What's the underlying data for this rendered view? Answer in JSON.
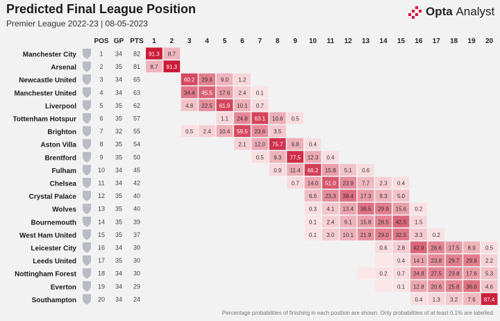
{
  "header": {
    "title": "Predicted Final League Position",
    "subtitle": "Premier League 2022-23 | 08-05-2023",
    "brand_main": "Opta",
    "brand_sub": "Analyst"
  },
  "footnote": "Percentage probabilities of finishing in each position are shown. Only probabilities of at least 0.1% are labelled.",
  "colors": {
    "background": "#f2f2f2",
    "cell_low": "#fbe6e8",
    "cell_high": "#c8102e",
    "brand_accent": "#e0003c"
  },
  "chart_data": {
    "type": "heatmap",
    "columns": [
      "POS",
      "GP",
      "PTS"
    ],
    "positions": [
      "1",
      "2",
      "3",
      "4",
      "5",
      "6",
      "7",
      "8",
      "9",
      "10",
      "11",
      "12",
      "13",
      "14",
      "15",
      "16",
      "17",
      "18",
      "19",
      "20"
    ],
    "teams": [
      {
        "name": "Manchester City",
        "badge": "man-city-badge",
        "pos": 1,
        "gp": 34,
        "pts": 82,
        "start": 1,
        "probs": [
          91.3,
          8.7
        ]
      },
      {
        "name": "Arsenal",
        "badge": "arsenal-badge",
        "pos": 2,
        "gp": 35,
        "pts": 81,
        "start": 1,
        "probs": [
          8.7,
          91.3
        ]
      },
      {
        "name": "Newcastle United",
        "badge": "newcastle-badge",
        "pos": 3,
        "gp": 34,
        "pts": 65,
        "start": 3,
        "probs": [
          60.2,
          29.6,
          9.0,
          1.2
        ]
      },
      {
        "name": "Manchester United",
        "badge": "man-utd-badge",
        "pos": 4,
        "gp": 34,
        "pts": 63,
        "start": 3,
        "probs": [
          34.4,
          45.5,
          17.6,
          2.4,
          0.1
        ]
      },
      {
        "name": "Liverpool",
        "badge": "liverpool-badge",
        "pos": 5,
        "gp": 35,
        "pts": 62,
        "start": 3,
        "probs": [
          4.8,
          22.5,
          61.9,
          10.1,
          0.7
        ]
      },
      {
        "name": "Tottenham Hotspur",
        "badge": "tottenham-badge",
        "pos": 6,
        "gp": 35,
        "pts": 57,
        "start": 5,
        "probs": [
          1.1,
          24.8,
          63.1,
          10.6,
          0.5
        ]
      },
      {
        "name": "Brighton",
        "badge": "brighton-badge",
        "pos": 7,
        "gp": 32,
        "pts": 55,
        "start": 3,
        "probs": [
          0.5,
          2.4,
          10.4,
          59.5,
          23.6,
          3.5
        ]
      },
      {
        "name": "Aston Villa",
        "badge": "aston-villa-badge",
        "pos": 8,
        "gp": 35,
        "pts": 54,
        "start": 6,
        "probs": [
          2.1,
          12.0,
          75.7,
          9.8,
          0.4
        ]
      },
      {
        "name": "Brentford",
        "badge": "brentford-badge",
        "pos": 9,
        "gp": 35,
        "pts": 50,
        "start": 7,
        "probs": [
          0.5,
          9.3,
          77.5,
          12.3,
          0.4
        ]
      },
      {
        "name": "Fulham",
        "badge": "fulham-badge",
        "pos": 10,
        "gp": 34,
        "pts": 45,
        "start": 8,
        "probs": [
          0.9,
          11.4,
          66.2,
          15.8,
          5.1,
          0.6
        ]
      },
      {
        "name": "Chelsea",
        "badge": "chelsea-badge",
        "pos": 11,
        "gp": 34,
        "pts": 42,
        "start": 9,
        "probs": [
          0.7,
          14.0,
          51.0,
          23.9,
          7.7,
          2.3,
          0.4
        ]
      },
      {
        "name": "Crystal Palace",
        "badge": "crystal-palace-badge",
        "pos": 12,
        "gp": 35,
        "pts": 40,
        "start": 10,
        "probs": [
          6.6,
          23.3,
          38.4,
          17.3,
          9.3,
          5.0
        ]
      },
      {
        "name": "Wolves",
        "badge": "wolves-badge",
        "pos": 13,
        "gp": 35,
        "pts": 40,
        "start": 10,
        "probs": [
          0.3,
          4.1,
          13.4,
          36.5,
          29.9,
          15.6,
          0.2
        ]
      },
      {
        "name": "Bournemouth",
        "badge": "bournemouth-badge",
        "pos": 14,
        "gp": 35,
        "pts": 39,
        "start": 10,
        "probs": [
          0.1,
          2.4,
          9.1,
          15.8,
          28.5,
          42.5,
          1.5
        ]
      },
      {
        "name": "West Ham United",
        "badge": "west-ham-badge",
        "pos": 15,
        "gp": 35,
        "pts": 37,
        "start": 10,
        "probs": [
          0.1,
          3.0,
          10.1,
          21.9,
          29.0,
          32.5,
          3.3,
          0.2
        ]
      },
      {
        "name": "Leicester City",
        "badge": "leicester-badge",
        "pos": 16,
        "gp": 34,
        "pts": 30,
        "start": 14,
        "probs": [
          0.6,
          2.8,
          42.9,
          26.6,
          17.5,
          8.9,
          0.5
        ]
      },
      {
        "name": "Leeds United",
        "badge": "leeds-badge",
        "pos": 17,
        "gp": 35,
        "pts": 30,
        "start": 14,
        "probs": [
          null,
          0.4,
          14.1,
          23.8,
          29.7,
          29.8,
          2.2
        ]
      },
      {
        "name": "Nottingham Forest",
        "badge": "nottingham-badge",
        "pos": 18,
        "gp": 34,
        "pts": 30,
        "start": 13,
        "probs": [
          null,
          0.2,
          0.7,
          24.8,
          27.5,
          23.8,
          17.6,
          5.3
        ]
      },
      {
        "name": "Everton",
        "badge": "everton-badge",
        "pos": 19,
        "gp": 34,
        "pts": 29,
        "start": 14,
        "probs": [
          null,
          0.1,
          12.8,
          20.6,
          25.8,
          36.0,
          4.6
        ]
      },
      {
        "name": "Southampton",
        "badge": "southampton-badge",
        "pos": 20,
        "gp": 34,
        "pts": 24,
        "start": 16,
        "probs": [
          0.4,
          1.3,
          3.2,
          7.6,
          87.4
        ]
      }
    ]
  }
}
